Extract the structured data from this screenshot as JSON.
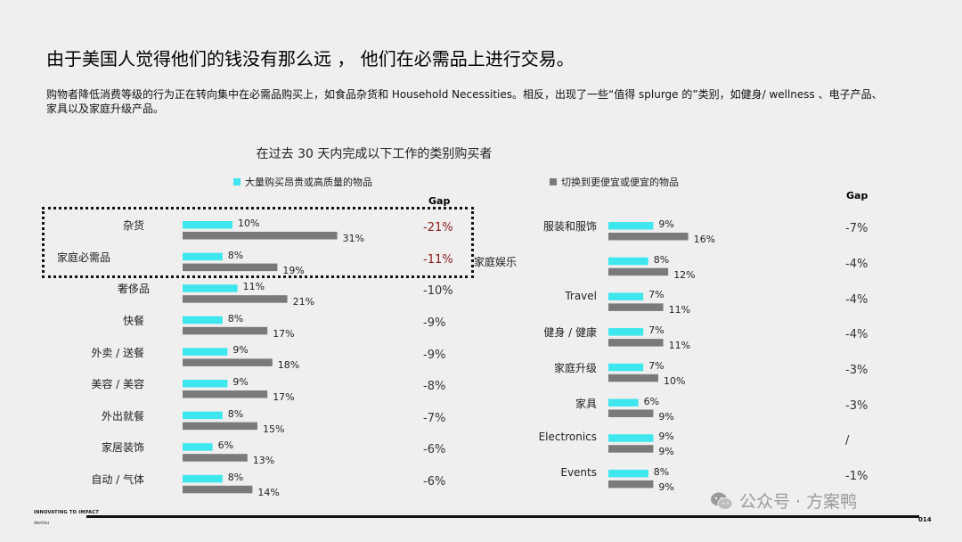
{
  "slide": {
    "title": "由于美国人觉得他们的钱没有那么远 ， 他们在必需品上进行交易。",
    "subtitle": "购物者降低消费等级的行为正在转向集中在必需品购买上，如食品杂货和 Household Necessities。相反，出现了一些“值得 splurge 的”类别，如健身/ wellness 、电子产品、家具以及家庭升级产品。",
    "footer_brand_1": "INNOVATING TO IMPACT",
    "footer_brand_2": "dentsu",
    "page_number": "014",
    "watermark": "公众号 · 方案鸭"
  },
  "colors": {
    "buy_premium": "#3ee6ee",
    "switch_cheaper": "#7a7a7a",
    "gap_highlight": "#8b1a1a"
  },
  "chart_data": {
    "type": "bar",
    "orientation": "horizontal",
    "title": "在过去 30 天内完成以下工作的类别购买者",
    "legend": [
      "大量购买昂贵或高质量的物品",
      "切换到更便宜或便宜的物品"
    ],
    "gap_header": "Gap",
    "panels": [
      {
        "categories": [
          "杂货",
          "家庭必需品",
          "奢侈品",
          "快餐",
          "外卖 / 送餐",
          "美容 / 美容",
          "外出就餐",
          "家居装饰",
          "自动 / 气体"
        ],
        "series": [
          {
            "name": "大量购买昂贵或高质量的物品",
            "values": [
              10,
              8,
              11,
              8,
              9,
              9,
              8,
              6,
              8
            ]
          },
          {
            "name": "切换到更便宜或便宜的物品",
            "values": [
              31,
              19,
              21,
              17,
              18,
              17,
              15,
              13,
              14
            ]
          }
        ],
        "value_labels": [
          [
            "10%",
            "8%",
            "11%",
            "8%",
            "9%",
            "9%",
            "8%",
            "6%",
            "8%"
          ],
          [
            "31%",
            "19%",
            "21%",
            "17%",
            "18%",
            "17%",
            "15%",
            "13%",
            "14%"
          ]
        ],
        "gap": [
          "-21%",
          "-11%",
          "-10%",
          "-9%",
          "-9%",
          "-8%",
          "-7%",
          "-6%",
          "-6%"
        ],
        "highlighted": [
          0,
          1
        ]
      },
      {
        "categories": [
          "服装和服饰",
          "家庭娱乐",
          "Travel",
          "健身 / 健康",
          "家庭升级",
          "家具",
          "Electronics",
          "Events"
        ],
        "series": [
          {
            "name": "大量购买昂贵或高质量的物品",
            "values": [
              9,
              8,
              7,
              7,
              7,
              6,
              9,
              8
            ]
          },
          {
            "name": "切换到更便宜或便宜的物品",
            "values": [
              16,
              12,
              11,
              11,
              10,
              9,
              9,
              9
            ]
          }
        ],
        "value_labels": [
          [
            "9%",
            "8%",
            "7%",
            "7%",
            "7%",
            "6%",
            "9%",
            "8%"
          ],
          [
            "16%",
            "12%",
            "11%",
            "11%",
            "10%",
            "9%",
            "9%",
            "9%"
          ]
        ],
        "gap": [
          "-7%",
          "-4%",
          "-4%",
          "-4%",
          "-3%",
          "-3%",
          "/",
          "-1%"
        ],
        "highlighted": []
      }
    ]
  }
}
